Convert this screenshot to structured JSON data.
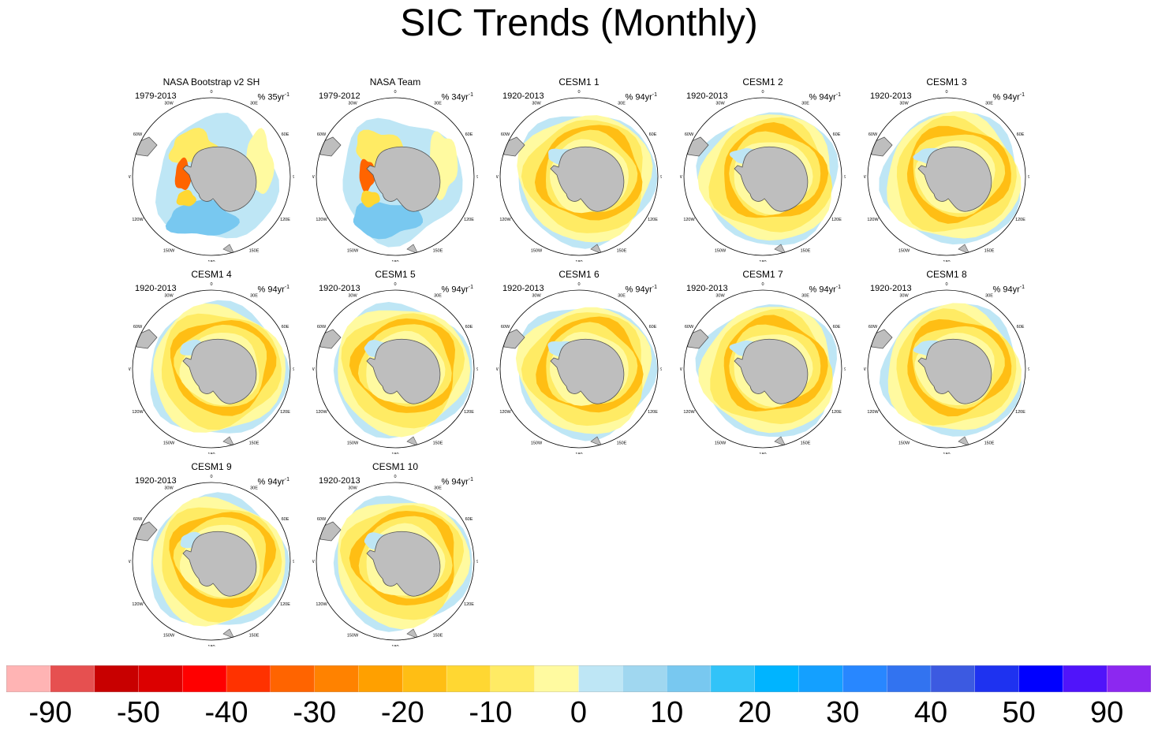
{
  "title": "SIC Trends (Monthly)",
  "panels": [
    {
      "title": "NASA Bootstrap v2 SH",
      "years": "1979-2013",
      "units": "% 35yr",
      "units_sup": "-1",
      "pattern": "obs1"
    },
    {
      "title": "NASA Team",
      "years": "1979-2012",
      "units": "% 34yr",
      "units_sup": "-1",
      "pattern": "obs2"
    },
    {
      "title": "CESM1 1",
      "years": "1920-2013",
      "units": "% 94yr",
      "units_sup": "-1",
      "pattern": "model"
    },
    {
      "title": "CESM1 2",
      "years": "1920-2013",
      "units": "% 94yr",
      "units_sup": "-1",
      "pattern": "model"
    },
    {
      "title": "CESM1 3",
      "years": "1920-2013",
      "units": "% 94yr",
      "units_sup": "-1",
      "pattern": "model"
    },
    {
      "title": "CESM1 4",
      "years": "1920-2013",
      "units": "% 94yr",
      "units_sup": "-1",
      "pattern": "model"
    },
    {
      "title": "CESM1 5",
      "years": "1920-2013",
      "units": "% 94yr",
      "units_sup": "-1",
      "pattern": "model"
    },
    {
      "title": "CESM1 6",
      "years": "1920-2013",
      "units": "% 94yr",
      "units_sup": "-1",
      "pattern": "model"
    },
    {
      "title": "CESM1 7",
      "years": "1920-2013",
      "units": "% 94yr",
      "units_sup": "-1",
      "pattern": "model"
    },
    {
      "title": "CESM1 8",
      "years": "1920-2013",
      "units": "% 94yr",
      "units_sup": "-1",
      "pattern": "model"
    },
    {
      "title": "CESM1 9",
      "years": "1920-2013",
      "units": "% 94yr",
      "units_sup": "-1",
      "pattern": "model"
    },
    {
      "title": "CESM1 10",
      "years": "1920-2013",
      "units": "% 94yr",
      "units_sup": "-1",
      "pattern": "model"
    }
  ],
  "lon_labels": [
    "0",
    "30E",
    "60E",
    "90E",
    "120E",
    "150E",
    "180",
    "150W",
    "120W",
    "90W",
    "60W",
    "30W"
  ],
  "colorbar": {
    "colors": [
      "#ffb4b4",
      "#e65050",
      "#c80000",
      "#dc0000",
      "#ff0000",
      "#ff3200",
      "#ff6400",
      "#ff8200",
      "#ffa000",
      "#ffbe14",
      "#ffd732",
      "#ffeb64",
      "#fffaa0",
      "#bee6f5",
      "#a0d7f0",
      "#78c8f0",
      "#32c3f8",
      "#00b4ff",
      "#14a0ff",
      "#2887ff",
      "#3273f0",
      "#3c5ae1",
      "#1e32f0",
      "#0000ff",
      "#5014fa",
      "#8c28f0"
    ],
    "labels": [
      "-90",
      "-50",
      "-40",
      "-30",
      "-20",
      "-10",
      "0",
      "10",
      "20",
      "30",
      "40",
      "50",
      "90"
    ]
  },
  "palette": {
    "land": "#bebebe",
    "coast": "#555555",
    "ring": "#000000"
  }
}
